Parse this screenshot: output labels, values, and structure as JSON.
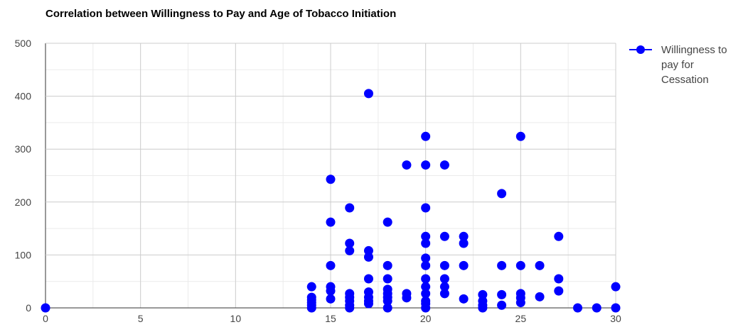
{
  "chart_data": {
    "type": "scatter",
    "title": "Correlation between Willingness to Pay and Age of Tobacco Initiation",
    "x": [
      0,
      14,
      14,
      14,
      14,
      14,
      14,
      15,
      15,
      15,
      15,
      15,
      15,
      16,
      16,
      16,
      16,
      16,
      16,
      16,
      16,
      17,
      17,
      17,
      17,
      17,
      17,
      17,
      17,
      18,
      18,
      18,
      18,
      18,
      18,
      18,
      18,
      19,
      19,
      19,
      20,
      20,
      20,
      20,
      20,
      20,
      20,
      20,
      20,
      20,
      20,
      20,
      20,
      21,
      21,
      21,
      21,
      21,
      21,
      22,
      22,
      22,
      22,
      23,
      23,
      23,
      23,
      24,
      24,
      24,
      24,
      25,
      25,
      25,
      25,
      25,
      26,
      26,
      27,
      27,
      27,
      28,
      29,
      30,
      30
    ],
    "series": [
      {
        "name": "Willingness to pay for Cessation",
        "color": "#0000ff",
        "values": [
          0,
          0,
          5,
          10,
          15,
          20,
          40,
          243,
          162,
          80,
          40,
          32,
          17,
          189,
          122,
          108,
          27,
          20,
          13,
          5,
          0,
          405,
          108,
          96,
          55,
          30,
          20,
          13,
          8,
          162,
          80,
          55,
          35,
          27,
          20,
          13,
          0,
          270,
          27,
          19,
          324,
          270,
          189,
          135,
          122,
          94,
          80,
          55,
          40,
          27,
          13,
          8,
          0,
          270,
          135,
          80,
          55,
          40,
          27,
          135,
          122,
          80,
          17,
          25,
          13,
          5,
          0,
          216,
          80,
          25,
          5,
          324,
          80,
          27,
          19,
          10,
          80,
          21,
          135,
          55,
          32,
          0,
          0,
          40,
          0
        ]
      }
    ],
    "xlim": [
      0,
      30
    ],
    "xticks": [
      0,
      5,
      10,
      15,
      20,
      25,
      30
    ],
    "ylim": [
      0,
      500
    ],
    "yticks": [
      0,
      100,
      200,
      300,
      400,
      500
    ],
    "xminorticks": [
      2.5,
      7.5,
      12.5,
      17.5,
      22.5,
      27.5
    ],
    "yminorticks": [
      50,
      150,
      250,
      350,
      450
    ],
    "grid": true,
    "legend": "right"
  }
}
